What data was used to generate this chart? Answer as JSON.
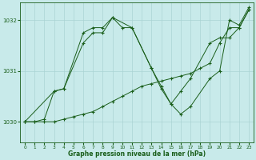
{
  "background_color": "#c8eaea",
  "grid_color": "#aad4d4",
  "line_color": "#1a5e1a",
  "marker": "+",
  "xlabel": "Graphe pression niveau de la mer (hPa)",
  "xlim": [
    -0.5,
    23.5
  ],
  "ylim": [
    1029.6,
    1032.35
  ],
  "yticks": [
    1030,
    1031,
    1032
  ],
  "xticks": [
    0,
    1,
    2,
    3,
    4,
    5,
    6,
    7,
    8,
    9,
    10,
    11,
    12,
    13,
    14,
    15,
    16,
    17,
    18,
    19,
    20,
    21,
    22,
    23
  ],
  "series": [
    {
      "x": [
        0,
        1,
        2,
        3,
        4,
        6,
        7,
        8,
        9,
        11,
        13,
        14,
        15,
        16,
        17,
        19,
        20,
        21,
        22,
        23
      ],
      "y": [
        1030.0,
        1030.0,
        1030.05,
        1030.6,
        1030.65,
        1031.55,
        1031.75,
        1031.75,
        1032.05,
        1031.85,
        1031.05,
        1030.65,
        1030.35,
        1030.6,
        1030.85,
        1031.55,
        1031.65,
        1031.65,
        1031.85,
        1032.2
      ]
    },
    {
      "x": [
        0,
        3,
        4,
        6,
        7,
        8,
        9,
        10,
        11,
        13,
        14,
        15,
        16,
        17,
        19,
        20,
        21,
        22,
        23
      ],
      "y": [
        1030.0,
        1030.6,
        1030.65,
        1031.75,
        1031.85,
        1031.85,
        1032.05,
        1031.85,
        1031.85,
        1031.05,
        1030.7,
        1030.35,
        1030.15,
        1030.3,
        1030.85,
        1031.0,
        1032.0,
        1031.9,
        1032.25
      ]
    },
    {
      "x": [
        0,
        1,
        2,
        3,
        4,
        5,
        6,
        7,
        8,
        9,
        10,
        11,
        12,
        13,
        14,
        15,
        16,
        17,
        18,
        19,
        20,
        21,
        22,
        23
      ],
      "y": [
        1030.0,
        1030.0,
        1030.0,
        1030.0,
        1030.05,
        1030.1,
        1030.15,
        1030.2,
        1030.3,
        1030.4,
        1030.5,
        1030.6,
        1030.7,
        1030.75,
        1030.8,
        1030.85,
        1030.9,
        1030.95,
        1031.05,
        1031.15,
        1031.55,
        1031.85,
        1031.85,
        1032.2
      ]
    }
  ]
}
